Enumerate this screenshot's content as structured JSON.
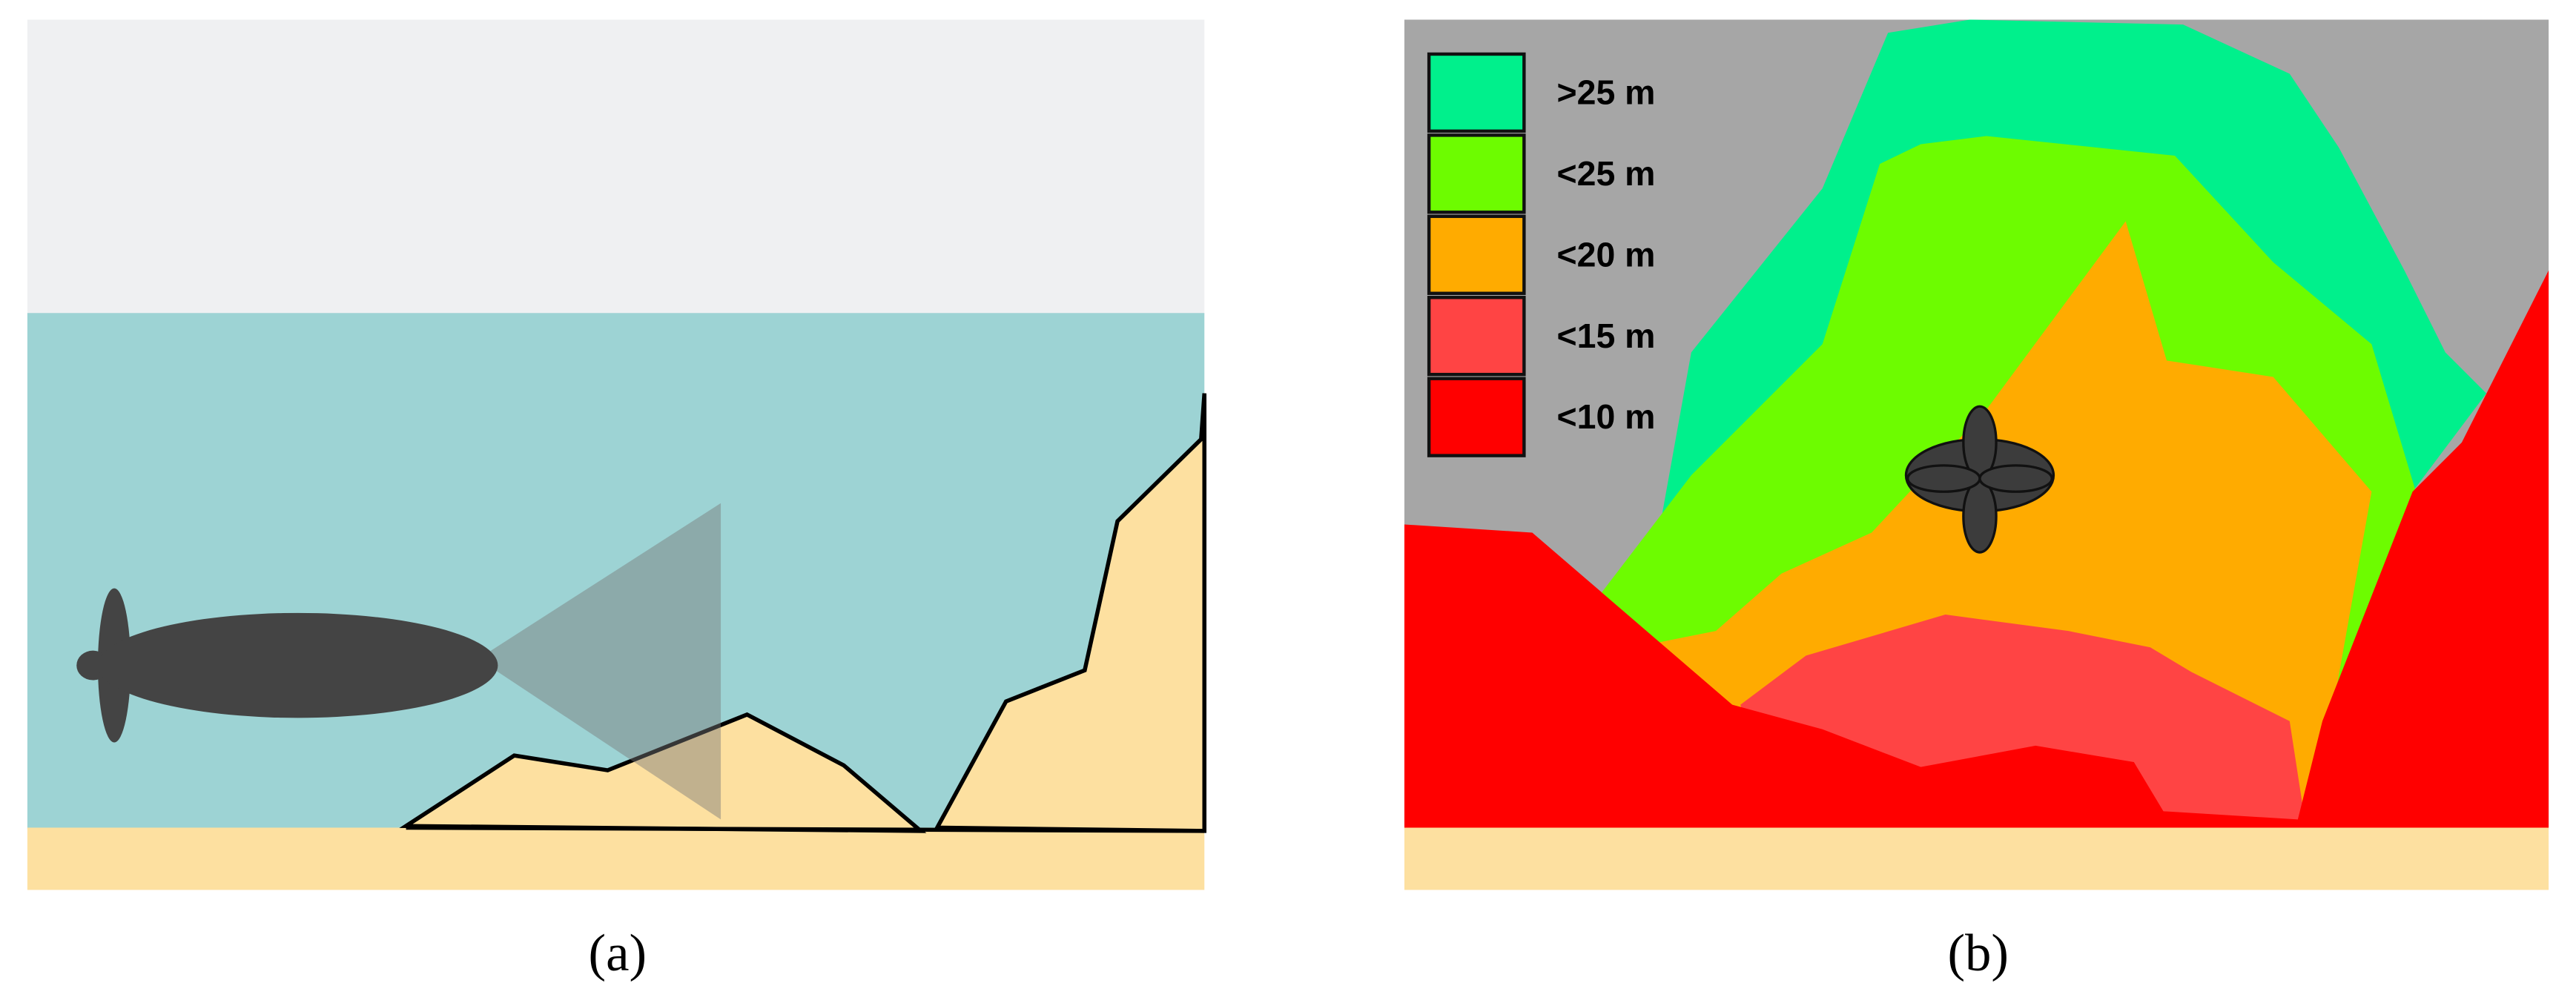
{
  "panels": [
    {
      "caption": "(a)"
    },
    {
      "caption": "(b)",
      "legend": [
        {
          "label": ">25 m",
          "color": "#00f08c"
        },
        {
          "label": "<25 m",
          "color": "#6dfc00"
        },
        {
          "label": "<20 m",
          "color": "#ffab00"
        },
        {
          "label": "<15 m",
          "color": "#ff4444"
        },
        {
          "label": "<10 m",
          "color": "#ff0000"
        }
      ]
    }
  ]
}
